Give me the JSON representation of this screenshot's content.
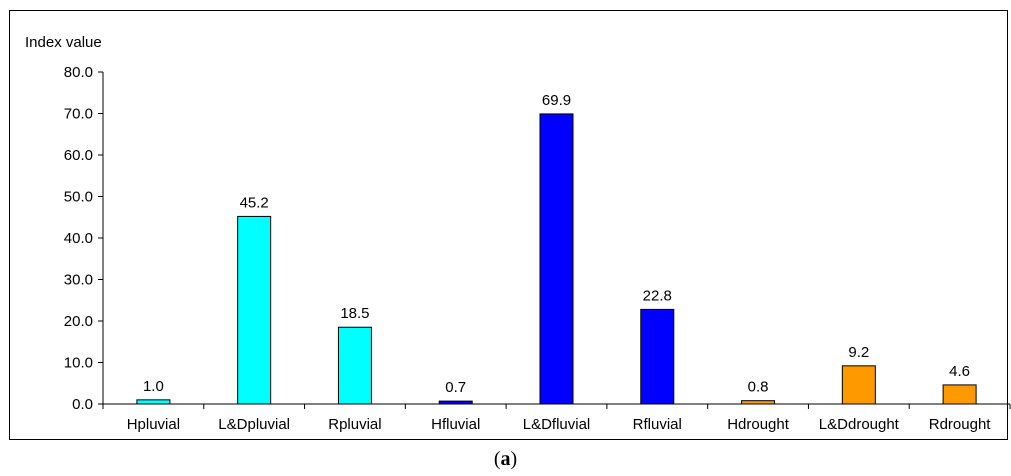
{
  "caption": {
    "open": "(",
    "letter": "a",
    "close": ")"
  },
  "chart_data": {
    "type": "bar",
    "ylabel": "Index value",
    "ylim": [
      0,
      80
    ],
    "yticks": [
      "0.0",
      "10.0",
      "20.0",
      "30.0",
      "40.0",
      "50.0",
      "60.0",
      "70.0",
      "80.0"
    ],
    "categories": [
      "Hpluvial",
      "L&Dpluvial",
      "Rpluvial",
      "Hfluvial",
      "L&Dfluvial",
      "Rfluvial",
      "Hdrought",
      "L&Ddrought",
      "Rdrought"
    ],
    "values": [
      1.0,
      45.2,
      18.5,
      0.7,
      69.9,
      22.8,
      0.8,
      9.2,
      4.6
    ],
    "labels": [
      "1.0",
      "45.2",
      "18.5",
      "0.7",
      "69.9",
      "22.8",
      "0.8",
      "9.2",
      "4.6"
    ],
    "colors": [
      "#00FFFF",
      "#00FFFF",
      "#00FFFF",
      "#0000FF",
      "#0000FF",
      "#0000FF",
      "#FF9900",
      "#FF9900",
      "#FF9900"
    ],
    "grid": false,
    "legend": "none"
  }
}
